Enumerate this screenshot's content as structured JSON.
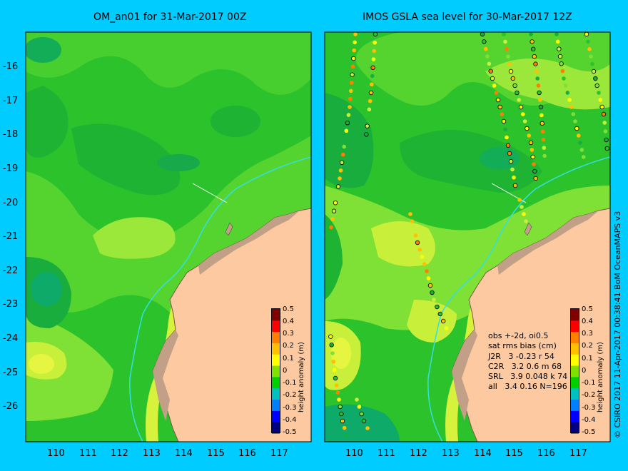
{
  "left_panel": {
    "title": "OM_an01 for 31-Mar-2017 00Z",
    "lat_ticks": [
      "-16",
      "-17",
      "-18",
      "-19",
      "-20",
      "-21",
      "-22",
      "-23",
      "-24",
      "-25",
      "-26"
    ],
    "lon_ticks": [
      "110",
      "111",
      "112",
      "113",
      "114",
      "115",
      "116",
      "117"
    ],
    "colorbar_label": "height anomaly (m)"
  },
  "right_panel": {
    "title": "IMOS GSLA sea level  for 30-Mar-2017 12Z",
    "lon_ticks": [
      "110",
      "111",
      "112",
      "113",
      "114",
      "115",
      "116",
      "117"
    ],
    "colorbar_label": "height anomaly (m)",
    "stats_lines": [
      "obs +-2d, oi0.5",
      "sat rms bias (cm)",
      "J2R   3 -0.23 r 54",
      "C2R   3.2 0.6 m 68",
      "SRL   3.9 0.048 k 74",
      "all   3.4 0.16 N=196"
    ]
  },
  "colorbar_ticks": [
    "0.5",
    "0.4",
    "0.3",
    "0.2",
    "0.1",
    "0",
    "-0.1",
    "-0.2",
    "-0.3",
    "-0.4",
    "-0.5"
  ],
  "credit": "© CSIRO 2017   11-Apr-2017 00:38:41  BoM OceanMAPS v3",
  "colors": {
    "background": "#00ccff",
    "land": "#fcc9a0",
    "coast": "#c2a087",
    "ocean_base": "#2bc22b",
    "colorbar": [
      "#000080",
      "#0000ff",
      "#0080ff",
      "#00c0c0",
      "#00d000",
      "#80e000",
      "#ffff00",
      "#ffc000",
      "#ff8000",
      "#ff0000",
      "#800000"
    ]
  }
}
